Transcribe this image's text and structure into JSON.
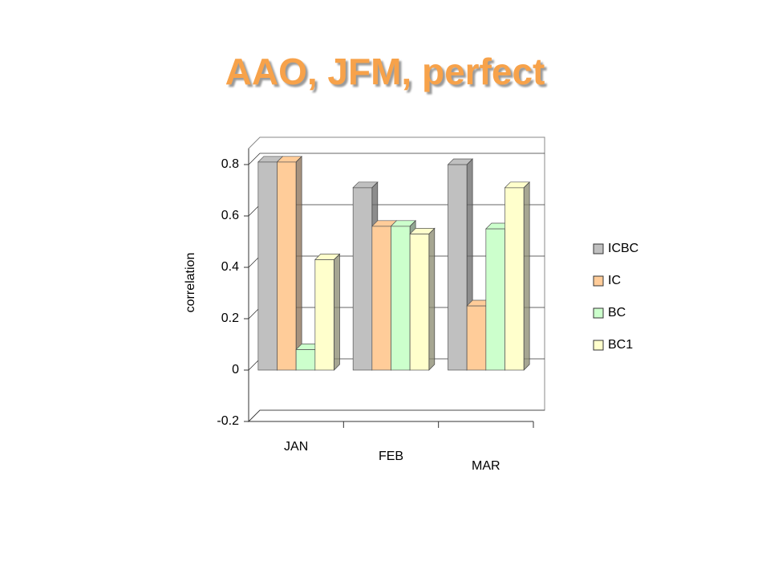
{
  "chart_data": {
    "type": "bar",
    "title": "AAO, JFM, perfect",
    "y_label": "correlation",
    "categories": [
      "JAN",
      "FEB",
      "MAR"
    ],
    "series": [
      {
        "name": "ICBC",
        "color": "#c0c0c0",
        "values": [
          0.81,
          0.71,
          0.8
        ]
      },
      {
        "name": "IC",
        "color": "#ffcc99",
        "values": [
          0.81,
          0.56,
          0.25
        ]
      },
      {
        "name": "BC",
        "color": "#ccffcc",
        "values": [
          0.08,
          0.56,
          0.55
        ]
      },
      {
        "name": "BC1",
        "color": "#ffffcc",
        "values": [
          0.43,
          0.53,
          0.71
        ]
      }
    ],
    "ylim": [
      -0.2,
      0.8
    ],
    "yticks": [
      -0.2,
      0,
      0.2,
      0.4,
      0.6,
      0.8
    ],
    "grid": true,
    "legend": "right"
  }
}
